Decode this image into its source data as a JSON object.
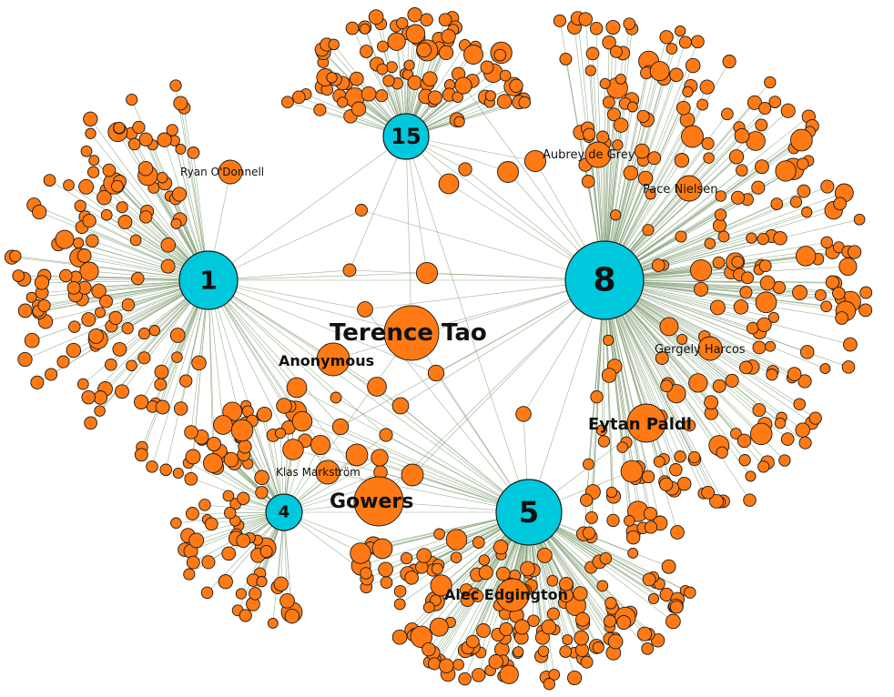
{
  "hubs": [
    {
      "id": "h1",
      "label": "1"
    },
    {
      "id": "h15",
      "label": "15"
    },
    {
      "id": "h8",
      "label": "8"
    },
    {
      "id": "h4",
      "label": "4"
    },
    {
      "id": "h5",
      "label": "5"
    }
  ],
  "named_nodes": [
    {
      "id": "tao",
      "label": "Terence Tao"
    },
    {
      "id": "gowers",
      "label": "Gowers"
    },
    {
      "id": "anon",
      "label": "Anonymous"
    },
    {
      "id": "paldi",
      "label": "Eytan Paldi"
    },
    {
      "id": "edgington",
      "label": "Alec Edgington"
    },
    {
      "id": "harcos",
      "label": "Gergely Harcos"
    },
    {
      "id": "nielsen",
      "label": "Pace Nielsen"
    },
    {
      "id": "degrey",
      "label": "Aubrey de Grey"
    },
    {
      "id": "odonnell",
      "label": "Ryan O'Donnell"
    },
    {
      "id": "markstrom",
      "label": "Klas Markström"
    }
  ],
  "colors": {
    "hub_fill": "#00c8dc",
    "person_fill": "#ff7a14",
    "edge": "#8aa47c",
    "outline": "#1a1a1a"
  }
}
